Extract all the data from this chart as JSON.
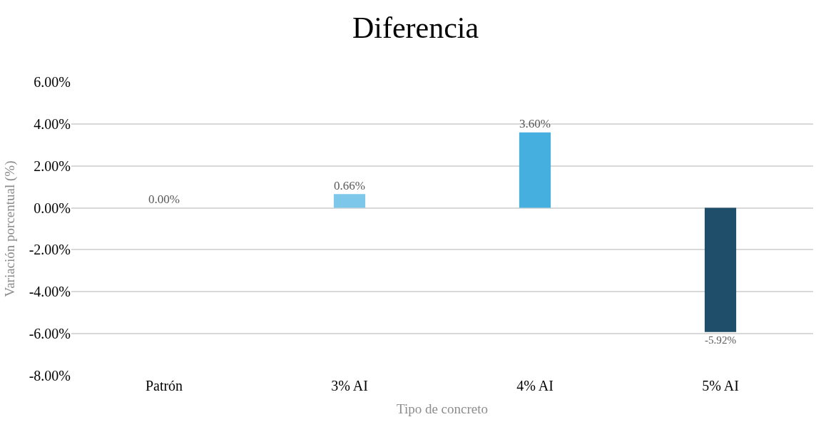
{
  "chart_data": {
    "type": "bar",
    "title": "Diferencia",
    "xlabel": "Tipo de concreto",
    "ylabel": "Variación porcentual (%)",
    "categories": [
      "Patrón",
      "3% AI",
      "4% AI",
      "5% AI"
    ],
    "values": [
      0,
      0.66,
      3.6,
      -5.92
    ],
    "value_labels": [
      "0.00%",
      "0.66%",
      "3.60%",
      "-5.92%"
    ],
    "colors": [
      "#7dc8ea",
      "#7dc8ea",
      "#45b0e0",
      "#1f4e6b"
    ],
    "ylim": [
      -8,
      6
    ],
    "yticks": [
      {
        "value": -8,
        "label": "-8.00%"
      },
      {
        "value": -6,
        "label": "-6.00%"
      },
      {
        "value": -4,
        "label": "-4.00%"
      },
      {
        "value": -2,
        "label": "-2.00%"
      },
      {
        "value": 0,
        "label": "0.00%"
      },
      {
        "value": 2,
        "label": "2.00%"
      },
      {
        "value": 4,
        "label": "4.00%"
      },
      {
        "value": 6,
        "label": "6.00%"
      }
    ],
    "grid": "y"
  }
}
